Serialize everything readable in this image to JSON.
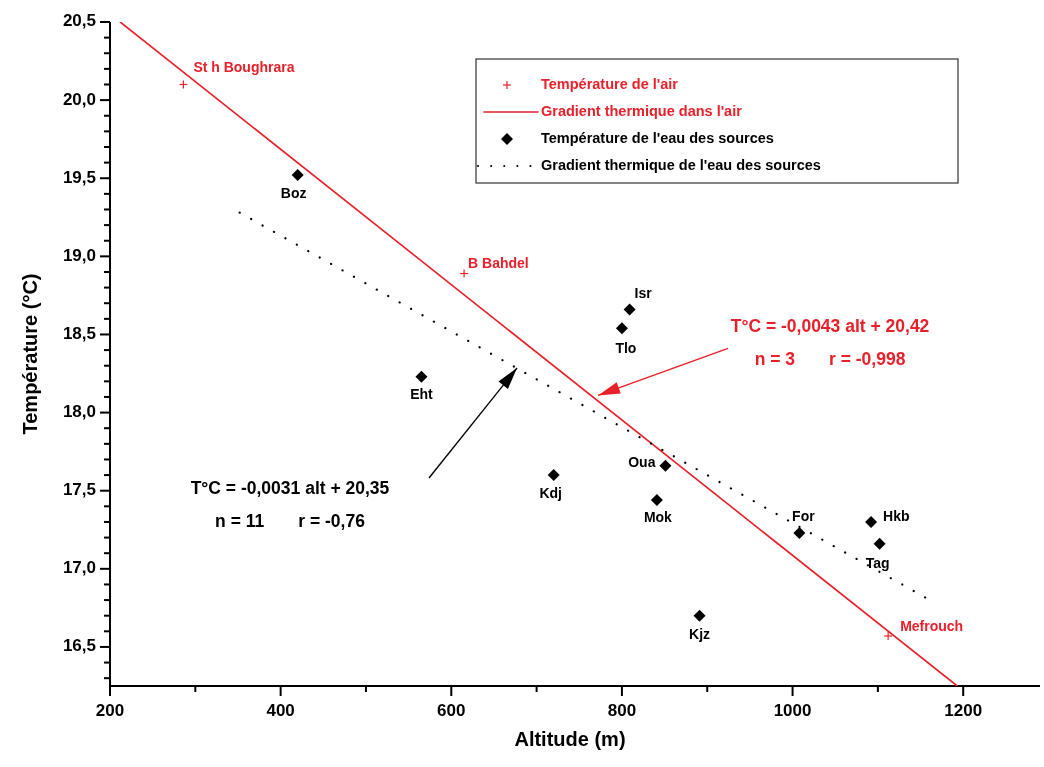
{
  "chart_data": {
    "type": "scatter",
    "xlabel": "Altitude (m)",
    "ylabel": "Température (°C)",
    "xlim": [
      200,
      1290
    ],
    "ylim": [
      16.25,
      20.5
    ],
    "xticks": [
      200,
      {
        "value": 300,
        "label": null
      },
      400,
      {
        "value": 500,
        "label": null
      },
      600,
      {
        "value": 700,
        "label": null
      },
      800,
      {
        "value": 900,
        "label": null
      },
      1000,
      {
        "value": 1100,
        "label": null
      },
      1200
    ],
    "yticks": [
      {
        "value": 16.3,
        "label": null
      },
      {
        "value": 16.4,
        "label": null
      },
      {
        "value": 16.5,
        "label": "16,5"
      },
      {
        "value": 16.6,
        "label": null
      },
      {
        "value": 16.7,
        "label": null
      },
      {
        "value": 16.8,
        "label": null
      },
      {
        "value": 16.9,
        "label": null
      },
      {
        "value": 17.0,
        "label": "17,0"
      },
      {
        "value": 17.1,
        "label": null
      },
      {
        "value": 17.2,
        "label": null
      },
      {
        "value": 17.3,
        "label": null
      },
      {
        "value": 17.4,
        "label": null
      },
      {
        "value": 17.5,
        "label": "17,5"
      },
      {
        "value": 17.6,
        "label": null
      },
      {
        "value": 17.7,
        "label": null
      },
      {
        "value": 17.8,
        "label": null
      },
      {
        "value": 17.9,
        "label": null
      },
      {
        "value": 18.0,
        "label": "18,0"
      },
      {
        "value": 18.1,
        "label": null
      },
      {
        "value": 18.2,
        "label": null
      },
      {
        "value": 18.3,
        "label": null
      },
      {
        "value": 18.4,
        "label": null
      },
      {
        "value": 18.5,
        "label": "18,5"
      },
      {
        "value": 18.6,
        "label": null
      },
      {
        "value": 18.7,
        "label": null
      },
      {
        "value": 18.8,
        "label": null
      },
      {
        "value": 18.9,
        "label": null
      },
      {
        "value": 19.0,
        "label": "19,0"
      },
      {
        "value": 19.1,
        "label": null
      },
      {
        "value": 19.2,
        "label": null
      },
      {
        "value": 19.3,
        "label": null
      },
      {
        "value": 19.4,
        "label": null
      },
      {
        "value": 19.5,
        "label": "19,5"
      },
      {
        "value": 19.6,
        "label": null
      },
      {
        "value": 19.7,
        "label": null
      },
      {
        "value": 19.8,
        "label": null
      },
      {
        "value": 19.9,
        "label": null
      },
      {
        "value": 20.0,
        "label": "20,0"
      },
      {
        "value": 20.1,
        "label": null
      },
      {
        "value": 20.2,
        "label": null
      },
      {
        "value": 20.3,
        "label": null
      },
      {
        "value": 20.4,
        "label": null
      },
      {
        "value": 20.5,
        "label": "20,5"
      }
    ],
    "grid": false,
    "legend": "top right",
    "series": [
      {
        "name": "Température de l'air",
        "type": "scatter",
        "marker": "cross",
        "color": "#e8202a",
        "x": [
          286,
          615,
          1112
        ],
        "values": [
          20.1,
          18.89,
          16.57
        ]
      },
      {
        "name": "Gradient thermique dans l'air",
        "type": "line",
        "marker": "none",
        "line_style": "solid",
        "color": "#e8202a",
        "x": [
          212,
          1193
        ],
        "values": [
          20.5,
          16.25
        ]
      },
      {
        "name": "Température de l'eau des sources",
        "type": "scatter",
        "marker": "diamond",
        "color": "#000000",
        "x": [
          420,
          565,
          809,
          800,
          720,
          851,
          841,
          891,
          1008,
          1092,
          1102
        ],
        "values": [
          19.52,
          18.23,
          18.66,
          18.54,
          17.6,
          17.66,
          17.44,
          16.7,
          17.23,
          17.3,
          17.16
        ]
      },
      {
        "name": "Gradient thermique de l'eau des sources",
        "type": "line",
        "marker": "none",
        "line_style": "dotted",
        "color": "#000000",
        "x": [
          352,
          1161
        ],
        "values": [
          19.28,
          16.8
        ]
      }
    ],
    "annotations": [
      {
        "text": "St h Boughrara",
        "x": 286,
        "y": 20.1
      },
      {
        "text": "B Bahdel",
        "x": 615,
        "y": 18.89
      },
      {
        "text": "Mefrouch",
        "x": 1112,
        "y": 16.57
      },
      {
        "text": "Boz",
        "x": 420,
        "y": 19.52
      },
      {
        "text": "Eht",
        "x": 565,
        "y": 18.23
      },
      {
        "text": "Isr",
        "x": 809,
        "y": 18.66
      },
      {
        "text": "Tlo",
        "x": 800,
        "y": 18.54
      },
      {
        "text": "Kdj",
        "x": 720,
        "y": 17.6
      },
      {
        "text": "Oua",
        "x": 851,
        "y": 17.66
      },
      {
        "text": "Mok",
        "x": 841,
        "y": 17.44
      },
      {
        "text": "Kjz",
        "x": 891,
        "y": 16.7
      },
      {
        "text": "For",
        "x": 1008,
        "y": 17.23
      },
      {
        "text": "Hkb",
        "x": 1092,
        "y": 17.3
      },
      {
        "text": "Tag",
        "x": 1102,
        "y": 17.16
      },
      {
        "text": "T°C = -0,0043 alt + 20,42\nn = 3       r = -0,998",
        "x": 772,
        "y": 18.11
      },
      "T°C = -0,0031 alt + 20,35\nn = 11       r = -0,76"
    ]
  }
}
